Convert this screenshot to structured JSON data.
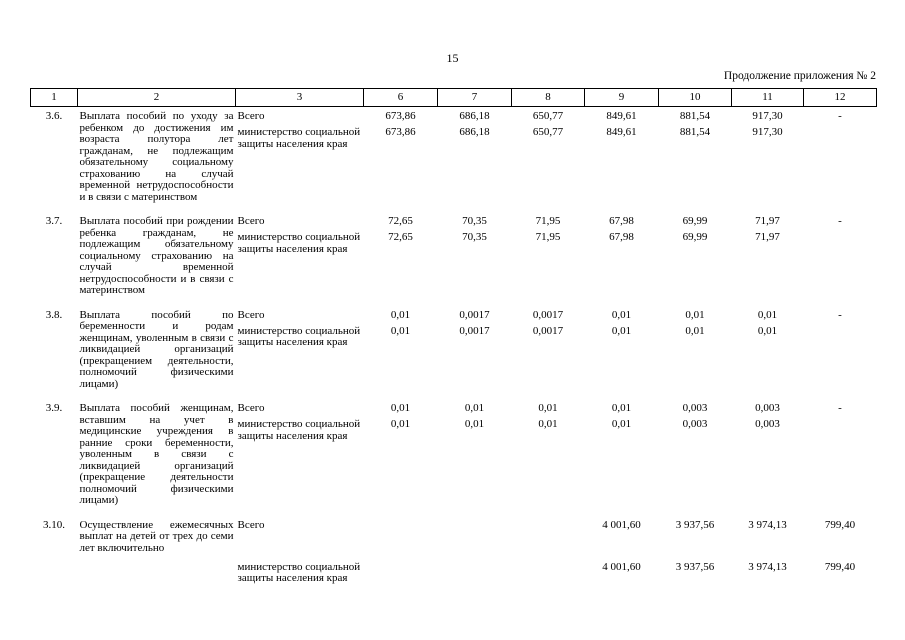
{
  "page": {
    "number": "15",
    "continuation": "Продолжение приложения № 2"
  },
  "table": {
    "columns": [
      "1",
      "2",
      "3",
      "6",
      "7",
      "8",
      "9",
      "10",
      "11",
      "12"
    ],
    "total_label": "Всего",
    "ministry_label": "министерство социальной защиты населения края",
    "rows": [
      {
        "num": "3.6.",
        "name": "Выплата пособий по уходу за ребенком до достижения им возраста полутора лет гражданам, не подлежащим обязательному социальному страхованию на случай временной нетрудоспособности и в связи с материнством",
        "ministry_below_name": false,
        "total_values": [
          "673,86",
          "686,18",
          "650,77",
          "849,61",
          "881,54",
          "917,30",
          "-"
        ],
        "ministry_values": [
          "673,86",
          "686,18",
          "650,77",
          "849,61",
          "881,54",
          "917,30",
          ""
        ]
      },
      {
        "num": "3.7.",
        "name": "Выплата пособий при рождении ребенка гражданам, не подлежащим обязательному социальному страхованию на случай временной нетрудоспособности и в связи с материнством",
        "ministry_below_name": false,
        "total_values": [
          "72,65",
          "70,35",
          "71,95",
          "67,98",
          "69,99",
          "71,97",
          "-"
        ],
        "ministry_values": [
          "72,65",
          "70,35",
          "71,95",
          "67,98",
          "69,99",
          "71,97",
          ""
        ]
      },
      {
        "num": "3.8.",
        "name": "Выплата пособий по беременности и родам женщинам, уволенным в связи с ликвидацией организаций (прекращением деятельности, полномочий физическими лицами)",
        "ministry_below_name": false,
        "total_values": [
          "0,01",
          "0,0017",
          "0,0017",
          "0,01",
          "0,01",
          "0,01",
          "-"
        ],
        "ministry_values": [
          "0,01",
          "0,0017",
          "0,0017",
          "0,01",
          "0,01",
          "0,01",
          ""
        ]
      },
      {
        "num": "3.9.",
        "name": "Выплата пособий женщинам, вставшим на учет в медицинские учреждения в ранние сроки беременности, уволенным в связи с ликвидацией организаций (прекращение деятельности полномочий физическими лицами)",
        "ministry_below_name": false,
        "total_values": [
          "0,01",
          "0,01",
          "0,01",
          "0,01",
          "0,003",
          "0,003",
          "-"
        ],
        "ministry_values": [
          "0,01",
          "0,01",
          "0,01",
          "0,01",
          "0,003",
          "0,003",
          ""
        ]
      },
      {
        "num": "3.10.",
        "name": "Осуществление ежемесячных выплат на детей от трех до семи лет включительно",
        "ministry_below_name": true,
        "total_values": [
          "",
          "",
          "",
          "4 001,60",
          "3 937,56",
          "3 974,13",
          "799,40"
        ],
        "ministry_values": [
          "",
          "",
          "",
          "4 001,60",
          "3 937,56",
          "3 974,13",
          "799,40"
        ]
      }
    ]
  }
}
